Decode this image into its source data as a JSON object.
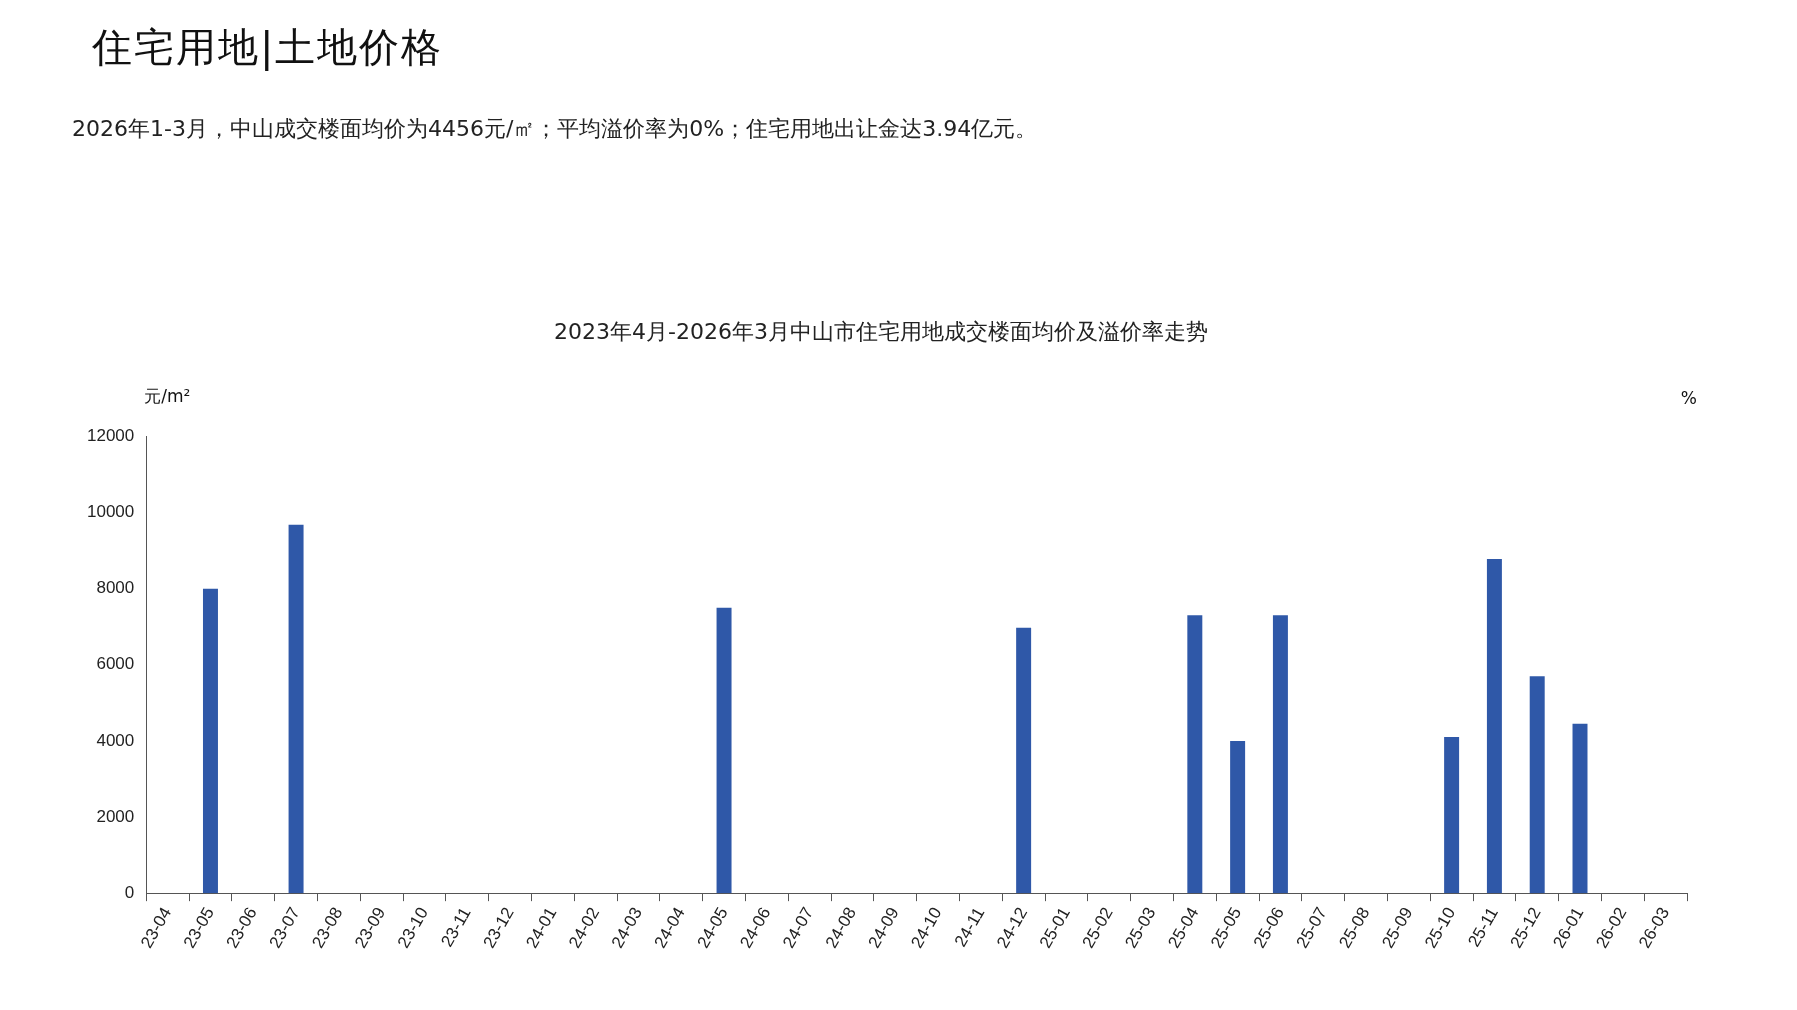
{
  "chart_data": {
    "type": "bar",
    "title": "2023年4月-2026年3月中山市住宅用地成交楼面均价及溢价率走势",
    "annotations": [
      "住宅用地|土地价格",
      "2026年1-3月，中山成交楼面均价为4456元/㎡；平均溢价率为0%；住宅用地出让金达3.94亿元。"
    ],
    "ylabel": "元/m²",
    "y2label": "%",
    "categories": [
      "23-04",
      "23-05",
      "23-06",
      "23-07",
      "23-08",
      "23-09",
      "23-10",
      "23-11",
      "23-12",
      "24-01",
      "24-02",
      "24-03",
      "24-04",
      "24-05",
      "24-06",
      "24-07",
      "24-08",
      "24-09",
      "24-10",
      "24-11",
      "24-12",
      "25-01",
      "25-02",
      "25-03",
      "25-04",
      "25-05",
      "25-06",
      "25-07",
      "25-08",
      "25-09",
      "25-10",
      "25-11",
      "25-12",
      "26-01",
      "26-02",
      "26-03"
    ],
    "values": [
      null,
      8000,
      null,
      9680,
      null,
      null,
      null,
      null,
      null,
      null,
      null,
      null,
      null,
      7500,
      null,
      null,
      null,
      null,
      null,
      null,
      6970,
      null,
      null,
      null,
      7300,
      4000,
      7300,
      null,
      null,
      null,
      4100,
      8780,
      5700,
      4450,
      null,
      null
    ],
    "color": "#2f58a8",
    "ylim": [
      0,
      12000
    ],
    "yticks": [
      0,
      2000,
      4000,
      6000,
      8000,
      10000,
      12000
    ],
    "grid": false,
    "legend": false
  }
}
